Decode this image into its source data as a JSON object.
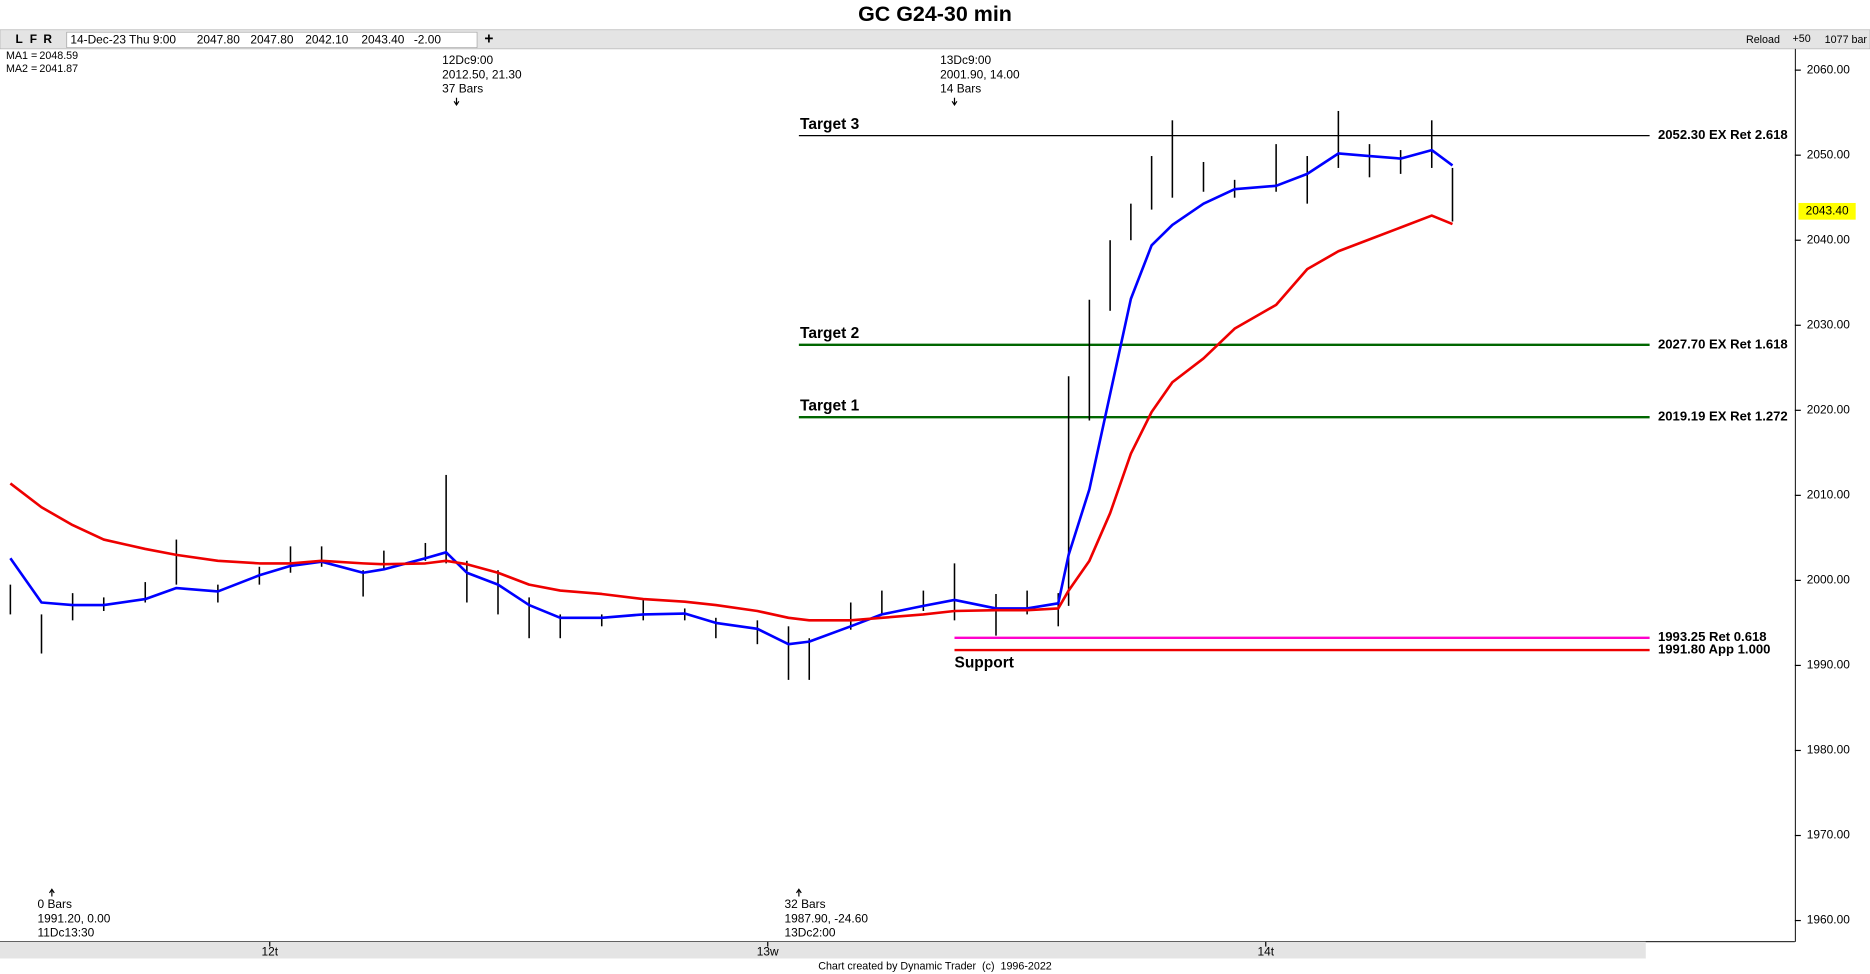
{
  "toolbar": {
    "buttons": [
      "L",
      "F",
      "R"
    ],
    "date": "14-Dec-23 Thu 9:00",
    "quote": [
      "2047.80",
      "2047.80",
      "2042.10",
      "2043.40",
      "-2.00"
    ],
    "quote_colors": [
      "#cc0000",
      "#cc0000",
      "#000000",
      "#cc0000",
      "#cc0000"
    ],
    "add": "+",
    "reload": "Reload",
    "zoom": "+50",
    "bars": "1077 bar"
  },
  "chart_data": {
    "type": "ohlc",
    "title": "GC G24-30 min",
    "x": [
      0,
      3,
      6,
      9,
      13,
      16,
      20,
      24,
      27,
      30,
      34,
      36,
      40,
      42,
      44,
      47,
      50,
      53,
      57,
      61,
      65,
      68,
      72,
      75,
      77,
      81,
      84,
      88,
      91,
      95,
      98,
      101,
      102,
      104,
      106,
      108,
      110,
      112,
      115,
      118,
      122,
      125,
      128,
      131,
      134,
      137,
      139
    ],
    "high": [
      1999.5,
      1996.0,
      1998.5,
      1998.0,
      1999.8,
      2004.8,
      1999.5,
      2001.6,
      2004.0,
      2004.0,
      2001.2,
      2003.5,
      2004.4,
      2012.4,
      2002.3,
      2001.2,
      1998.0,
      1996.0,
      1996.0,
      1997.7,
      1996.7,
      1995.6,
      1995.3,
      1994.6,
      1993.2,
      1997.4,
      1998.8,
      1998.8,
      2002.0,
      1998.4,
      1998.8,
      1998.5,
      2024.0,
      2033.0,
      2040.0,
      2044.3,
      2049.9,
      2054.1,
      2049.2,
      2047.1,
      2051.3,
      2049.9,
      2055.2,
      2051.3,
      2050.6,
      2054.1,
      2048.5
    ],
    "low": [
      1996.0,
      1991.4,
      1995.3,
      1996.4,
      1997.4,
      1999.5,
      1997.4,
      1999.5,
      2000.9,
      2001.6,
      1998.1,
      2001.2,
      2002.3,
      2002.0,
      1997.4,
      1996.0,
      1993.2,
      1993.2,
      1994.6,
      1995.3,
      1995.3,
      1993.2,
      1992.5,
      1988.3,
      1988.3,
      1994.2,
      1996.0,
      1996.4,
      1995.3,
      1993.5,
      1996.0,
      1994.6,
      1997.0,
      2018.8,
      2031.7,
      2040.0,
      2043.6,
      2045.0,
      2045.7,
      2045.0,
      2045.7,
      2044.3,
      2048.5,
      2047.4,
      2047.8,
      2048.5,
      2042.2
    ],
    "bar_color": "#000000",
    "series": [
      {
        "name": "MA1",
        "color": "#0000ff",
        "legend_value": 2048.59,
        "values": [
          2002.6,
          1997.4,
          1997.1,
          1997.1,
          1997.8,
          1999.1,
          1998.7,
          2000.6,
          2001.7,
          2002.2,
          2000.9,
          2001.3,
          2002.6,
          2003.3,
          2000.9,
          1999.5,
          1997.1,
          1995.6,
          1995.6,
          1996.0,
          1996.1,
          1995.0,
          1994.3,
          1992.5,
          1992.8,
          1994.6,
          1996.0,
          1997.0,
          1997.7,
          1996.7,
          1996.7,
          1997.3,
          2003.0,
          2010.7,
          2021.9,
          2033.1,
          2039.4,
          2041.8,
          2044.3,
          2046.0,
          2046.4,
          2047.8,
          2050.2,
          2049.9,
          2049.6,
          2050.6,
          2048.8
        ]
      },
      {
        "name": "MA2",
        "color": "#ee0000",
        "legend_value": 2041.87,
        "values": [
          2011.4,
          2008.6,
          2006.5,
          2004.8,
          2003.7,
          2003.0,
          2002.3,
          2002.0,
          2002.0,
          2002.3,
          2002.0,
          2001.9,
          2002.0,
          2002.3,
          2001.9,
          2000.9,
          1999.5,
          1998.8,
          1998.4,
          1997.8,
          1997.5,
          1997.1,
          1996.4,
          1995.6,
          1995.3,
          1995.3,
          1995.6,
          1996.0,
          1996.4,
          1996.5,
          1996.5,
          1996.7,
          1998.8,
          2002.3,
          2007.9,
          2014.9,
          2019.8,
          2023.3,
          2026.1,
          2029.6,
          2032.4,
          2036.6,
          2038.7,
          2040.1,
          2041.5,
          2042.9,
          2041.9
        ]
      }
    ],
    "legend_separator": "=",
    "last_price": {
      "value": 2043.4,
      "label": "2043.40"
    },
    "xlim": [
      -1,
      172
    ],
    "ylim": [
      1957.5,
      2062.5
    ],
    "xticks": [
      {
        "value": 25,
        "label": "12t"
      },
      {
        "value": 73,
        "label": "13w"
      },
      {
        "value": 121,
        "label": "14t"
      }
    ],
    "yticks": [
      {
        "value": 1960,
        "label": "1960.00"
      },
      {
        "value": 1970,
        "label": "1970.00"
      },
      {
        "value": 1980,
        "label": "1980.00"
      },
      {
        "value": 1990,
        "label": "1990.00"
      },
      {
        "value": 2000,
        "label": "2000.00"
      },
      {
        "value": 2010,
        "label": "2010.00"
      },
      {
        "value": 2020,
        "label": "2020.00"
      },
      {
        "value": 2030,
        "label": "2030.00"
      },
      {
        "value": 2040,
        "label": "2040.00"
      },
      {
        "value": 2050,
        "label": "2050.00"
      },
      {
        "value": 2060,
        "label": "2060.00"
      }
    ],
    "levels": [
      {
        "name": "Target 3",
        "value": 2052.3,
        "label": "2052.30 EX Ret 2.618",
        "color": "#000000",
        "start": 76,
        "end": 158,
        "width": 1
      },
      {
        "name": "Target 2",
        "value": 2027.7,
        "label": "2027.70 EX Ret 1.618",
        "color": "#006600",
        "start": 76,
        "end": 158,
        "width": 2
      },
      {
        "name": "Target 1",
        "value": 2019.19,
        "label": "2019.19 EX Ret 1.272",
        "color": "#006600",
        "start": 76,
        "end": 158,
        "width": 2
      },
      {
        "value": 1993.25,
        "label": "1993.25 Ret 0.618",
        "color": "#ff00cc",
        "start": 91,
        "end": 158,
        "width": 2
      },
      {
        "name": "Support",
        "name_side": "below",
        "value": 1991.8,
        "label": "1991.80 App 1.000",
        "color": "#ee0000",
        "start": 91,
        "end": 158,
        "width": 2
      }
    ],
    "markers": [
      {
        "side": "top",
        "x": 43,
        "lines": [
          "12Dc9:00",
          "2012.50, 21.30",
          "37 Bars"
        ]
      },
      {
        "side": "top",
        "x": 91,
        "lines": [
          "13Dc9:00",
          "2001.90, 14.00",
          "14 Bars"
        ]
      },
      {
        "side": "bottom",
        "x": 4,
        "lines": [
          "0 Bars",
          "1991.20, 0.00",
          "11Dc13:30"
        ]
      },
      {
        "side": "bottom",
        "x": 76,
        "lines": [
          "32 Bars",
          "1987.90, -24.60",
          "13Dc2:00"
        ]
      }
    ],
    "footer": "Chart created by Dynamic Trader  (c)  1996-2022"
  }
}
